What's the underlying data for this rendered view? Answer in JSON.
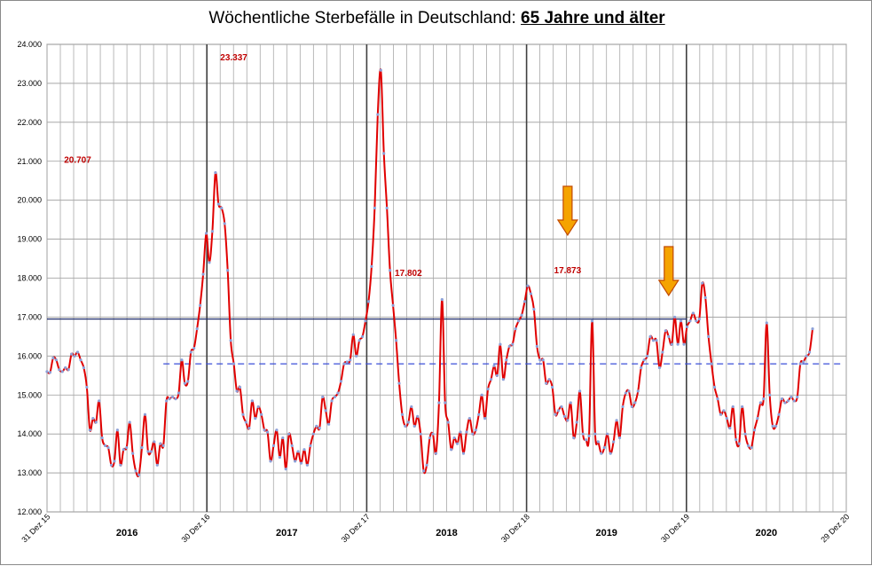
{
  "chart_data": {
    "type": "line",
    "title": "Wöchentliche Sterbefälle in Deutschland: ",
    "title_emphasis": "65 Jahre und älter",
    "ylim": [
      12000,
      24000
    ],
    "y_ticks": [
      "12.000",
      "13.000",
      "14.000",
      "15.000",
      "16.000",
      "17.000",
      "18.000",
      "19.000",
      "20.000",
      "21.000",
      "22.000",
      "23.000",
      "24.000"
    ],
    "x_date_labels": [
      "31 Dez 15",
      "30 Dez 16",
      "30 Dez 17",
      "30 Dez 18",
      "30 Dez 19",
      "29 Dez 20"
    ],
    "x_year_labels": [
      "2016",
      "2017",
      "2018",
      "2019",
      "2020"
    ],
    "grid": true,
    "series_color": "#e00000",
    "marker_color": "#8da0d8",
    "peak_labels": [
      {
        "week": 10,
        "value": 20707,
        "text": "20.707"
      },
      {
        "week": 61,
        "value": 23337,
        "text": "23.337"
      },
      {
        "week": 118,
        "value": 17802,
        "text": "17.802"
      },
      {
        "week": 170,
        "value": 17873,
        "text": "17.873"
      }
    ],
    "reference_lines": [
      {
        "value": 16950,
        "style": "solid",
        "color": "#1f2d6b",
        "from_week": 0,
        "to_week": 209
      },
      {
        "value": 15800,
        "style": "dashed",
        "color": "#3b4fd8",
        "from_week": 38,
        "to_week": 260
      }
    ],
    "arrows": [
      {
        "week": 170,
        "color": "#f5a300"
      },
      {
        "week": 203,
        "color": "#f5a300"
      }
    ],
    "values": [
      15600,
      15580,
      15950,
      15900,
      15650,
      15600,
      15700,
      15650,
      16050,
      16000,
      16100,
      15900,
      15700,
      15200,
      14100,
      14400,
      14300,
      14850,
      13900,
      13700,
      13650,
      13200,
      13300,
      14100,
      13200,
      13600,
      13650,
      14300,
      13500,
      13050,
      12950,
      13650,
      14500,
      13550,
      13550,
      13800,
      13200,
      13750,
      13700,
      14850,
      14900,
      14950,
      14900,
      15050,
      15900,
      15300,
      15350,
      16100,
      16200,
      16700,
      17300,
      18100,
      19150,
      18400,
      19200,
      20707,
      19900,
      19800,
      19400,
      18200,
      16400,
      15800,
      15100,
      15200,
      14500,
      14300,
      14150,
      14850,
      14400,
      14700,
      14500,
      14100,
      14050,
      13300,
      13700,
      14100,
      13400,
      13900,
      13100,
      14000,
      13700,
      13300,
      13550,
      13250,
      13600,
      13200,
      13700,
      14000,
      14200,
      14150,
      14950,
      14600,
      14250,
      14850,
      14950,
      15050,
      15350,
      15800,
      15850,
      15900,
      16550,
      16000,
      16400,
      16500,
      16900,
      17400,
      18300,
      19800,
      22200,
      23337,
      21200,
      19800,
      18200,
      17300,
      16400,
      15300,
      14500,
      14200,
      14300,
      14700,
      14200,
      14450,
      14000,
      13050,
      13200,
      13900,
      14000,
      13500,
      14800,
      17450,
      14800,
      14300,
      13600,
      13900,
      13750,
      14050,
      13500,
      14050,
      14400,
      14000,
      14100,
      14500,
      15000,
      14400,
      15150,
      15400,
      15750,
      15500,
      16300,
      15400,
      15900,
      16250,
      16300,
      16700,
      16900,
      17050,
      17400,
      17802,
      17600,
      17200,
      16250,
      15900,
      15900,
      15300,
      15400,
      15200,
      14500,
      14600,
      14700,
      14450,
      14350,
      14800,
      13900,
      14300,
      15100,
      14000,
      13850,
      13950,
      16900,
      14000,
      13800,
      13500,
      13650,
      14000,
      13500,
      13800,
      14350,
      13900,
      14700,
      15050,
      15100,
      14700,
      14800,
      15100,
      15700,
      15900,
      16000,
      16500,
      16400,
      16400,
      15700,
      16100,
      16650,
      16500,
      16300,
      17000,
      16300,
      16900,
      16300,
      16750,
      16900,
      17100,
      16900,
      16950,
      17873,
      17500,
      16500,
      15800,
      15200,
      14900,
      14500,
      14600,
      14400,
      14150,
      14700,
      13850,
      13750,
      14700,
      14000,
      13700,
      13650,
      14100,
      14400,
      14800,
      14900,
      16850,
      15000,
      14200,
      14200,
      14500,
      14900,
      14800,
      14850,
      14950,
      14850,
      14950,
      15800,
      15850,
      16000,
      16100,
      16700
    ]
  }
}
